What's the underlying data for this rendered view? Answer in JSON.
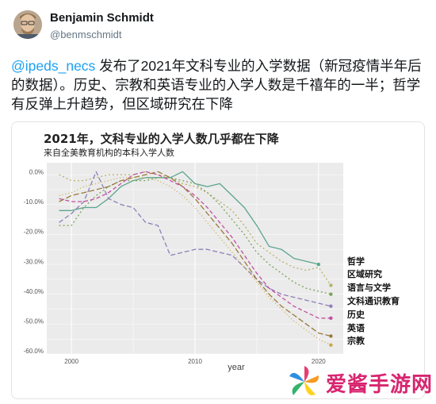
{
  "author": {
    "name": "Benjamin Schmidt",
    "handle": "@benmschmidt"
  },
  "tweet": {
    "mention": "@ipeds_necs",
    "body": " 发布了2021年文科专业的入学数据（新冠疫情半年后的数据）。历史、宗教和英语专业的入学人数是千禧年的一半；哲学有反弹上升趋势，但区域研究在下降"
  },
  "chart_data": {
    "type": "line",
    "title": "2021年，文科专业的入学人数几乎都在下降",
    "subtitle": "来自全美教育机构的本科入学人数",
    "xlabel": "year",
    "ylabel": "",
    "xlim": [
      1998,
      2022
    ],
    "ylim": [
      -61,
      3
    ],
    "xticks": [
      2000,
      2010,
      2020
    ],
    "yticks": [
      0,
      -10,
      -20,
      -30,
      -40,
      -50,
      -60
    ],
    "ytick_labels": [
      "0.0%",
      "-10.0%",
      "-20.0%",
      "-30.0%",
      "-40.0%",
      "-50.0%",
      "-60.0%"
    ],
    "grid": true,
    "legend": "end-labels-right",
    "series": [
      {
        "name": "哲学",
        "color": "#5aa58e",
        "dash": "solid",
        "x": [
          1999,
          2000,
          2001,
          2002,
          2003,
          2004,
          2005,
          2006,
          2007,
          2008,
          2009,
          2010,
          2011,
          2012,
          2013,
          2014,
          2015,
          2016,
          2017,
          2018,
          2019,
          2020
        ],
        "y": [
          -13,
          -13,
          -12,
          -12,
          -9,
          -5,
          -3,
          -2,
          -2,
          -2,
          0,
          -4,
          -5,
          -4,
          -8,
          -12,
          -18,
          -25,
          -26,
          -29,
          -30,
          -31
        ]
      },
      {
        "name": "区域研究",
        "color": "#b8b06a",
        "dash": "2 3",
        "x": [
          1999,
          2000,
          2001,
          2002,
          2003,
          2004,
          2005,
          2006,
          2007,
          2008,
          2009,
          2010,
          2011,
          2012,
          2013,
          2014,
          2015,
          2016,
          2017,
          2018,
          2019,
          2020,
          2021
        ],
        "y": [
          -1,
          -3,
          -3,
          -2,
          -1,
          -1,
          -1,
          0,
          -1,
          -2,
          -4,
          -5,
          -7,
          -10,
          -13,
          -18,
          -24,
          -27,
          -30,
          -32,
          -33,
          -32,
          -38
        ]
      },
      {
        "name": "语言与文学",
        "color": "#7aa35a",
        "dash": "2 3",
        "x": [
          1999,
          2000,
          2001,
          2002,
          2003,
          2004,
          2005,
          2006,
          2007,
          2008,
          2009,
          2010,
          2011,
          2012,
          2013,
          2014,
          2015,
          2016,
          2017,
          2018,
          2019,
          2020,
          2021
        ],
        "y": [
          -18,
          -18,
          -12,
          -8,
          -5,
          -3,
          -3,
          -3,
          -2,
          -2,
          -3,
          -4,
          -7,
          -11,
          -16,
          -21,
          -27,
          -31,
          -34,
          -37,
          -39,
          -40,
          -41
        ]
      },
      {
        "name": "文科通识教育",
        "color": "#8f7fb8",
        "dash": "6 3",
        "x": [
          1999,
          2000,
          2001,
          2002,
          2003,
          2004,
          2005,
          2006,
          2007,
          2008,
          2009,
          2010,
          2011,
          2012,
          2013,
          2014,
          2015,
          2016,
          2017,
          2018,
          2019,
          2020,
          2021
        ],
        "y": [
          -17,
          -14,
          -10,
          0,
          -9,
          -11,
          -12,
          -17,
          -18,
          -28,
          -27,
          -26,
          -26,
          -27,
          -28,
          -32,
          -36,
          -39,
          -41,
          -42,
          -43,
          -44,
          -45
        ]
      },
      {
        "name": "历史",
        "color": "#c24fa1",
        "dash": "5 3",
        "x": [
          1999,
          2000,
          2001,
          2002,
          2003,
          2004,
          2005,
          2006,
          2007,
          2008,
          2009,
          2010,
          2011,
          2012,
          2013,
          2014,
          2015,
          2016,
          2017,
          2018,
          2019,
          2020,
          2021
        ],
        "y": [
          -9,
          -10,
          -10,
          -9,
          -7,
          -4,
          -1,
          0,
          -1,
          -3,
          -5,
          -8,
          -12,
          -17,
          -22,
          -28,
          -34,
          -39,
          -42,
          -45,
          -47,
          -49,
          -49
        ]
      },
      {
        "name": "英语",
        "color": "#9a7a3c",
        "dash": "7 3",
        "x": [
          1999,
          2000,
          2001,
          2002,
          2003,
          2004,
          2005,
          2006,
          2007,
          2008,
          2009,
          2010,
          2011,
          2012,
          2013,
          2014,
          2015,
          2016,
          2017,
          2018,
          2019,
          2020,
          2021
        ],
        "y": [
          -10,
          -8,
          -7,
          -6,
          -5,
          -3,
          -2,
          -1,
          0,
          -2,
          -5,
          -9,
          -14,
          -19,
          -24,
          -30,
          -36,
          -41,
          -45,
          -48,
          -51,
          -54,
          -55
        ]
      },
      {
        "name": "宗教",
        "color": "#c9a84a",
        "dash": "1 3",
        "x": [
          1999,
          2000,
          2001,
          2002,
          2003,
          2004,
          2005,
          2006,
          2007,
          2008,
          2009,
          2010,
          2011,
          2012,
          2013,
          2014,
          2015,
          2016,
          2017,
          2018,
          2019,
          2020,
          2021
        ],
        "y": [
          -8,
          -7,
          -5,
          -4,
          -3,
          -2,
          -2,
          -2,
          -3,
          -5,
          -8,
          -12,
          -17,
          -22,
          -27,
          -32,
          -37,
          -42,
          -46,
          -50,
          -53,
          -56,
          -58
        ]
      }
    ],
    "end_labels": [
      "哲学",
      "区域研究",
      "语言与文学",
      "文科通识教育",
      "历史",
      "英语",
      "宗教"
    ]
  },
  "colors": {
    "mention": "#1da1f2",
    "handle": "#657786",
    "panel": "#ebebeb"
  },
  "watermark": {
    "text": "爱酱手游网",
    "icon": "pinwheel-logo"
  }
}
